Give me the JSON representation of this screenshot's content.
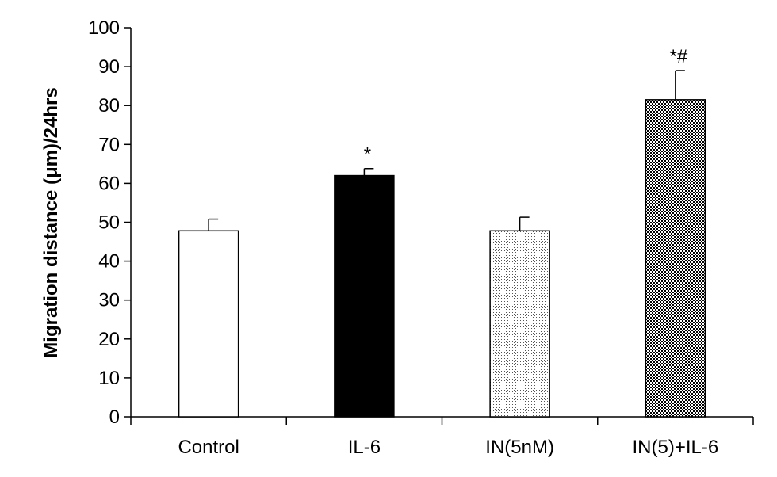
{
  "chart_data": {
    "type": "bar",
    "title": "",
    "xlabel": "",
    "ylabel": "Migration distance (μm)/24hrs",
    "ylim": [
      0,
      100
    ],
    "ytick_step": 10,
    "grid": false,
    "legend": "none",
    "categories": [
      "Control",
      "IL-6",
      "IN(5nM)",
      "IN(5)+IL-6"
    ],
    "values": [
      47.8,
      62.0,
      47.8,
      81.5
    ],
    "errors": [
      3.0,
      1.8,
      3.5,
      7.5
    ],
    "annotations": [
      "",
      "*",
      "",
      "*#"
    ],
    "fills": [
      "white",
      "black",
      "dots",
      "checker"
    ],
    "colors": {
      "bar_stroke": "#000000",
      "axis": "#000000"
    }
  }
}
